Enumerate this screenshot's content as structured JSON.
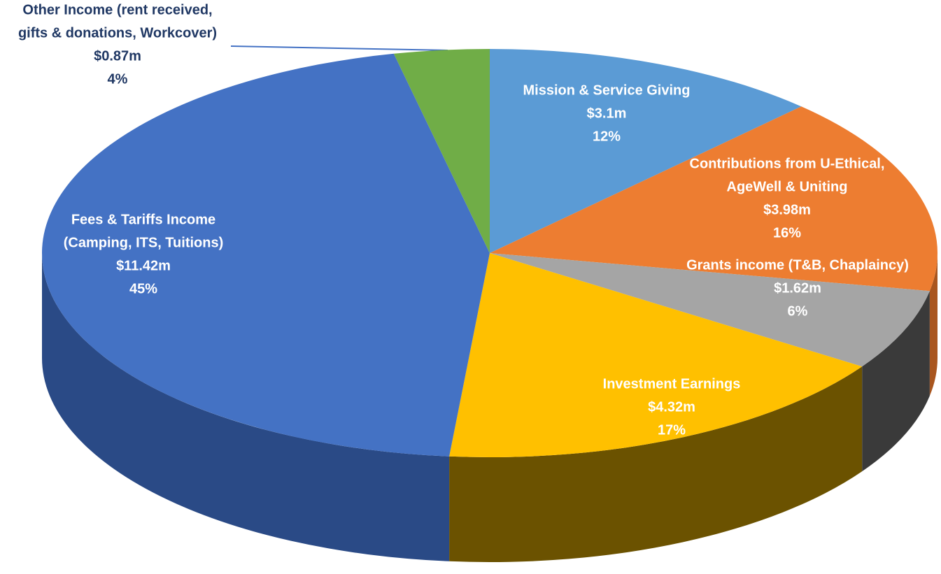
{
  "chart_data": {
    "type": "pie3d",
    "categories": [
      [
        "Mission & Service Giving"
      ],
      [
        "Contributions from U-Ethical,",
        "AgeWell & Uniting"
      ],
      [
        "Grants income (T&B, Chaplaincy)"
      ],
      [
        "Investment Earnings"
      ],
      [
        "Fees & Tariffs Income",
        "(Camping, ITS, Tuitions)"
      ],
      [
        "Other Income (rent received,",
        "gifts & donations, Workcover)"
      ]
    ],
    "values": [
      3.1,
      3.98,
      1.62,
      4.32,
      11.42,
      0.87
    ],
    "value_labels": [
      "$3.1m",
      "$3.98m",
      "$1.62m",
      "$4.32m",
      "$11.42m",
      "$0.87m"
    ],
    "percent_labels": [
      "12%",
      "16%",
      "6%",
      "17%",
      "45%",
      "4%"
    ],
    "colors": [
      "#5b9bd5",
      "#ed7d31",
      "#a5a5a5",
      "#ffc000",
      "#4472c4",
      "#70ad47"
    ],
    "side_colors": [
      "#3f6f9c",
      "#a9561f",
      "#3a3a3a",
      "#6b5200",
      "#2a4a86",
      "#4a7a2e"
    ]
  }
}
